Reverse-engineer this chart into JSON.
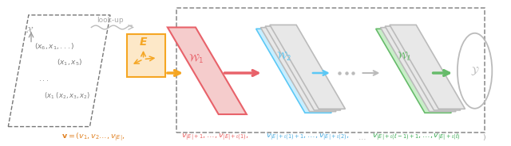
{
  "bg_color": "#ffffff",
  "fig_width": 6.4,
  "fig_height": 1.84,
  "dpi": 100,
  "embed_color": "#F5A623",
  "embed_face": "#FDE8C8",
  "w1_color": "#E8626A",
  "w1_face": "#F5CCCC",
  "w2_color": "#5BC8F5",
  "w2_face": "#C8EEFF",
  "wl_color": "#66BB6A",
  "wl_face": "#C8EEC8",
  "gray_color": "#AAAAAA",
  "dark_gray": "#555555"
}
